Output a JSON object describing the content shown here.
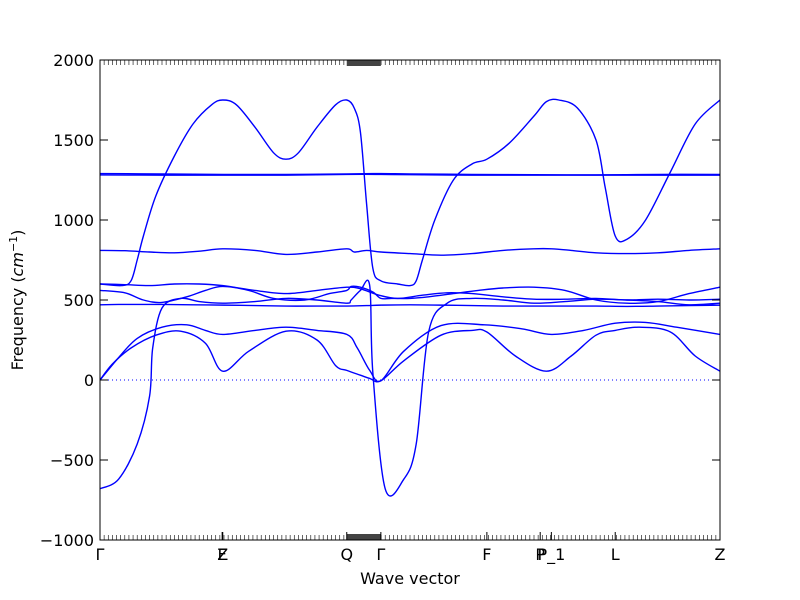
{
  "chart_data": {
    "type": "line",
    "title": "",
    "xlabel": "Wave vector",
    "ylabel_text": "Frequency (",
    "ylabel_unit": "cm",
    "ylabel_exp": "−1",
    "ylabel_close": ")",
    "ylim": [
      -1000,
      2000
    ],
    "yticks": [
      {
        "value": -1000,
        "label": "−1000"
      },
      {
        "value": -500,
        "label": "−500"
      },
      {
        "value": 0,
        "label": "0"
      },
      {
        "value": 500,
        "label": "500"
      },
      {
        "value": 1000,
        "label": "1000"
      },
      {
        "value": 1500,
        "label": "1500"
      },
      {
        "value": 2000,
        "label": "2000"
      }
    ],
    "xticks": [
      {
        "pos": 0.0,
        "label": "Γ"
      },
      {
        "pos": 0.197,
        "label": "F"
      },
      {
        "pos": 0.198,
        "label": "Z"
      },
      {
        "pos": 0.398,
        "label": "Q"
      },
      {
        "pos": 0.453,
        "label": "Γ"
      },
      {
        "pos": 0.624,
        "label": "F"
      },
      {
        "pos": 0.71,
        "label": "P"
      },
      {
        "pos": 0.728,
        "label": "P_1"
      },
      {
        "pos": 0.831,
        "label": "L"
      },
      {
        "pos": 1.0,
        "label": "Z"
      }
    ],
    "zero_line": true,
    "grid": false,
    "line_color": "#0000ff",
    "series": [
      {
        "x": [
          0,
          0.02,
          0.05,
          0.09,
          0.13,
          0.17,
          0.198,
          0.24,
          0.3,
          0.35,
          0.38,
          0.398,
          0.42,
          0.435,
          0.453,
          0.49,
          0.55,
          0.6,
          0.624,
          0.67,
          0.72,
          0.76,
          0.8,
          0.831,
          0.87,
          0.92,
          0.96,
          1.0
        ],
        "y": [
          0,
          100,
          200,
          280,
          305,
          230,
          55,
          180,
          305,
          250,
          90,
          60,
          30,
          10,
          -5,
          120,
          280,
          310,
          300,
          150,
          55,
          150,
          280,
          310,
          330,
          300,
          150,
          55
        ]
      },
      {
        "x": [
          0,
          0.03,
          0.06,
          0.1,
          0.14,
          0.17,
          0.198,
          0.25,
          0.3,
          0.35,
          0.398,
          0.415,
          0.435,
          0.453,
          0.49,
          0.55,
          0.62,
          0.68,
          0.728,
          0.78,
          0.831,
          0.88,
          0.93,
          1.0
        ],
        "y": [
          0,
          140,
          260,
          330,
          345,
          310,
          285,
          310,
          330,
          310,
          285,
          200,
          60,
          -5,
          180,
          340,
          345,
          320,
          285,
          310,
          355,
          360,
          330,
          285
        ]
      },
      {
        "x": [
          0,
          0.03,
          0.06,
          0.08,
          0.085,
          0.1,
          0.13,
          0.16,
          0.198,
          0.25,
          0.3,
          0.35,
          0.398,
          0.405,
          0.42,
          0.435,
          0.44,
          0.46,
          0.49,
          0.51,
          0.53,
          0.56,
          0.6,
          0.65,
          0.7,
          0.75,
          0.8,
          0.85,
          0.9,
          0.95,
          1.0
        ],
        "y": [
          -680,
          -620,
          -400,
          -100,
          200,
          450,
          510,
          490,
          480,
          490,
          510,
          500,
          480,
          500,
          560,
          590,
          50,
          -680,
          -620,
          -400,
          300,
          480,
          510,
          500,
          480,
          490,
          505,
          500,
          490,
          470,
          480
        ]
      },
      {
        "x": [
          0,
          0.04,
          0.07,
          0.1,
          0.14,
          0.17,
          0.198,
          0.24,
          0.28,
          0.33,
          0.37,
          0.398,
          0.405,
          0.42,
          0.44,
          0.453,
          0.47,
          0.5,
          0.53,
          0.57,
          0.61,
          0.65,
          0.7,
          0.75,
          0.8,
          0.85,
          0.9,
          0.95,
          1.0
        ],
        "y": [
          560,
          545,
          500,
          485,
          520,
          560,
          585,
          560,
          510,
          500,
          540,
          560,
          585,
          580,
          550,
          510,
          510,
          510,
          520,
          540,
          560,
          575,
          580,
          560,
          500,
          480,
          490,
          540,
          580
        ]
      },
      {
        "x": [
          0,
          0.03,
          0.06,
          0.1,
          0.15,
          0.2,
          0.25,
          0.3,
          0.35,
          0.398,
          0.43,
          0.453,
          0.5,
          0.55,
          0.6,
          0.65,
          0.7,
          0.75,
          0.8,
          0.85,
          0.9,
          0.95,
          1.0
        ],
        "y": [
          470,
          472,
          472,
          472,
          470,
          468,
          465,
          462,
          462,
          462,
          465,
          468,
          470,
          468,
          465,
          462,
          462,
          462,
          462,
          460,
          462,
          465,
          468
        ]
      },
      {
        "x": [
          0,
          0.04,
          0.08,
          0.12,
          0.16,
          0.198,
          0.25,
          0.3,
          0.35,
          0.398,
          0.42,
          0.45,
          0.48,
          0.52,
          0.56,
          0.6,
          0.65,
          0.7,
          0.75,
          0.8,
          0.85,
          0.9,
          0.95,
          1.0
        ],
        "y": [
          600,
          596,
          590,
          600,
          600,
          590,
          560,
          540,
          560,
          580,
          570,
          530,
          510,
          530,
          545,
          540,
          520,
          505,
          505,
          510,
          500,
          505,
          500,
          505
        ]
      },
      {
        "x": [
          0,
          0.04,
          0.08,
          0.12,
          0.16,
          0.198,
          0.25,
          0.3,
          0.35,
          0.398,
          0.41,
          0.43,
          0.453,
          0.5,
          0.55,
          0.6,
          0.65,
          0.7,
          0.728,
          0.76,
          0.8,
          0.85,
          0.9,
          0.95,
          1.0
        ],
        "y": [
          810,
          808,
          800,
          795,
          805,
          820,
          810,
          785,
          800,
          820,
          800,
          810,
          800,
          790,
          780,
          790,
          810,
          820,
          820,
          810,
          795,
          790,
          795,
          810,
          820
        ]
      },
      {
        "x": [
          0,
          0.1,
          0.2,
          0.3,
          0.398,
          0.453,
          0.5,
          0.6,
          0.7,
          0.8,
          0.9,
          1.0
        ],
        "y": [
          1290,
          1288,
          1285,
          1285,
          1288,
          1290,
          1288,
          1285,
          1283,
          1282,
          1285,
          1285
        ]
      },
      {
        "x": [
          0,
          0.1,
          0.2,
          0.3,
          0.398,
          0.453,
          0.5,
          0.6,
          0.7,
          0.8,
          0.9,
          1.0
        ],
        "y": [
          1282,
          1280,
          1280,
          1280,
          1285,
          1285,
          1283,
          1280,
          1280,
          1280,
          1280,
          1280
        ]
      },
      {
        "x": [
          0,
          0.035,
          0.05,
          0.06,
          0.07,
          0.09,
          0.12,
          0.15,
          0.18,
          0.198,
          0.22,
          0.25,
          0.28,
          0.3,
          0.32,
          0.35,
          0.38,
          0.398,
          0.41,
          0.42,
          0.43,
          0.44,
          0.453,
          0.48,
          0.5,
          0.51,
          0.52,
          0.54,
          0.57,
          0.6,
          0.624,
          0.66,
          0.7,
          0.72,
          0.74,
          0.77,
          0.8,
          0.815,
          0.831,
          0.85,
          0.88,
          0.92,
          0.96,
          1.0
        ],
        "y": [
          600,
          590,
          620,
          750,
          900,
          1150,
          1400,
          1600,
          1720,
          1750,
          1720,
          1580,
          1420,
          1380,
          1420,
          1580,
          1720,
          1750,
          1700,
          1550,
          1100,
          700,
          620,
          600,
          590,
          620,
          750,
          1000,
          1250,
          1350,
          1380,
          1480,
          1650,
          1740,
          1750,
          1700,
          1500,
          1200,
          900,
          880,
          1000,
          1300,
          1600,
          1750
        ]
      }
    ]
  }
}
